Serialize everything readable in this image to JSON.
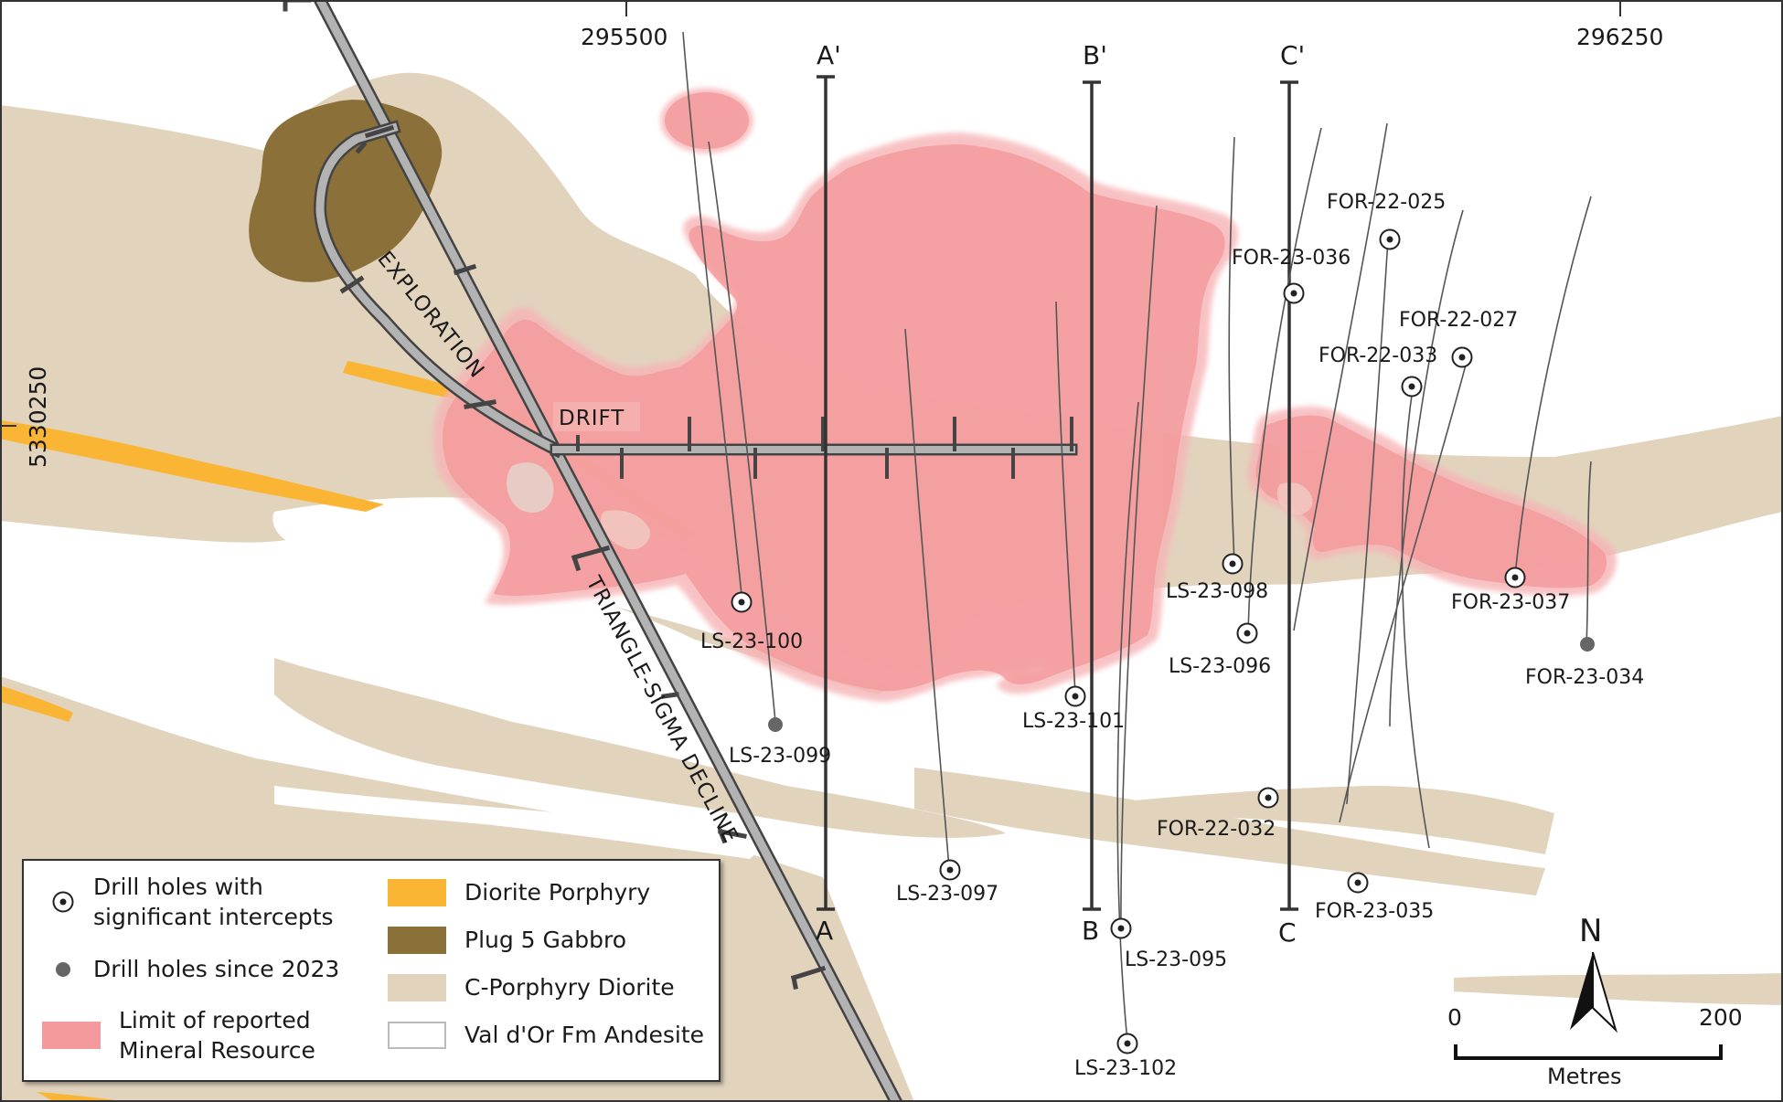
{
  "colors": {
    "diorite_porphyry": "#fbb534",
    "plug5_gabbro": "#8c7039",
    "c_porphyry_diorite": "#e2d3bd",
    "val_dor_andesite": "#ffffff",
    "mineral_resource": "#f49a9c",
    "tunnel": "#b3b3b3"
  },
  "coordinates": {
    "easting_left": "295500",
    "easting_right": "296250",
    "northing": "5330250"
  },
  "sections": {
    "a_top": "A'",
    "a_bottom": "A",
    "b_top": "B'",
    "b_bottom": "B",
    "c_top": "C'",
    "c_bottom": "C"
  },
  "tunnels": {
    "exploration": "EXPLORATION",
    "drift": "DRIFT",
    "decline": "TRIANGLE-SIGMA DECLINE"
  },
  "drill_holes": [
    {
      "id": "LS-23-100",
      "type": "significant"
    },
    {
      "id": "LS-23-099",
      "type": "since_2023"
    },
    {
      "id": "LS-23-097",
      "type": "significant"
    },
    {
      "id": "LS-23-101",
      "type": "significant"
    },
    {
      "id": "LS-23-095",
      "type": "significant"
    },
    {
      "id": "LS-23-102",
      "type": "significant"
    },
    {
      "id": "LS-23-098",
      "type": "significant"
    },
    {
      "id": "LS-23-096",
      "type": "significant"
    },
    {
      "id": "FOR-22-032",
      "type": "significant"
    },
    {
      "id": "FOR-23-035",
      "type": "significant"
    },
    {
      "id": "FOR-23-036",
      "type": "significant"
    },
    {
      "id": "FOR-22-025",
      "type": "significant"
    },
    {
      "id": "FOR-22-027",
      "type": "significant"
    },
    {
      "id": "FOR-22-033",
      "type": "significant"
    },
    {
      "id": "FOR-23-037",
      "type": "significant"
    },
    {
      "id": "FOR-23-034",
      "type": "since_2023"
    }
  ],
  "legend": {
    "significant_line1": "Drill holes with",
    "significant_line2": "significant intercepts",
    "since_2023": "Drill holes since 2023",
    "resource_line1": "Limit of reported",
    "resource_line2": "Mineral Resource",
    "diorite_porphyry": "Diorite Porphyry",
    "plug5_gabbro": "Plug 5 Gabbro",
    "c_porphyry_diorite": "C-Porphyry Diorite",
    "val_dor_andesite": "Val d'Or Fm Andesite"
  },
  "north_arrow": {
    "label": "N"
  },
  "scale_bar": {
    "start": "0",
    "end": "200",
    "unit": "Metres"
  }
}
